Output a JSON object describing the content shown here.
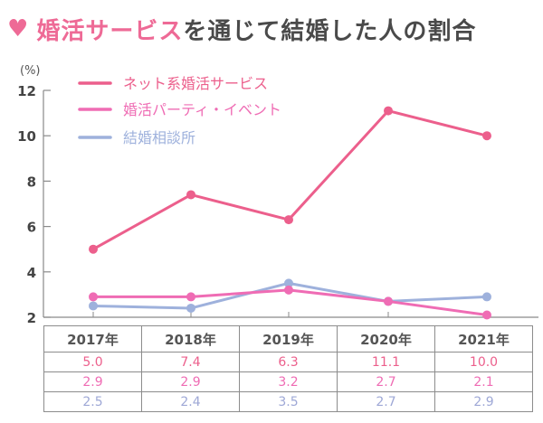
{
  "title": {
    "icon": "heart-icon",
    "highlight": "婚活サービス",
    "rest": "を通じて結婚した人の割合",
    "highlight_color": "#ee6a96"
  },
  "chart_data": {
    "type": "line",
    "title": "婚活サービスを通じて結婚した人の割合",
    "ylabel": "(%)",
    "xlabel": "",
    "ylim": [
      2,
      12
    ],
    "yticks": [
      2,
      4,
      6,
      8,
      10,
      12
    ],
    "grid": false,
    "legend_position": "top-left",
    "categories": [
      "2017年",
      "2018年",
      "2019年",
      "2020年",
      "2021年"
    ],
    "series": [
      {
        "name": "ネット系婚活サービス",
        "color": "#ec5f8c",
        "values": [
          5.0,
          7.4,
          6.3,
          11.1,
          10.0
        ],
        "labels": [
          "5.0",
          "7.4",
          "6.3",
          "11.1",
          "10.0"
        ]
      },
      {
        "name": "婚活パーティ・イベント",
        "color": "#ef6cb4",
        "values": [
          2.9,
          2.9,
          3.2,
          2.7,
          2.1
        ],
        "labels": [
          "2.9",
          "2.9",
          "3.2",
          "2.7",
          "2.1"
        ]
      },
      {
        "name": "結婚相談所",
        "color": "#9eb1dc",
        "values": [
          2.5,
          2.4,
          3.5,
          2.7,
          2.9
        ],
        "labels": [
          "2.5",
          "2.4",
          "3.5",
          "2.7",
          "2.9"
        ]
      }
    ]
  }
}
